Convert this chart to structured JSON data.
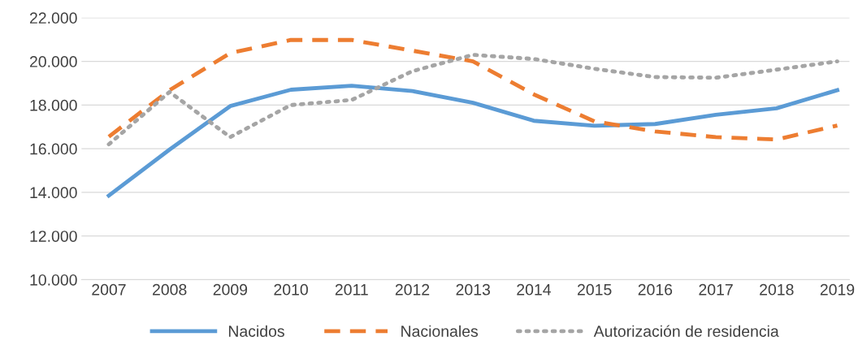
{
  "chart_data": {
    "type": "line",
    "categories": [
      "2007",
      "2008",
      "2009",
      "2010",
      "2011",
      "2012",
      "2013",
      "2014",
      "2015",
      "2016",
      "2017",
      "2018",
      "2019"
    ],
    "series": [
      {
        "name": "Nacidos",
        "color": "#5b9bd5",
        "line_style": "solid",
        "values": [
          13850,
          15960,
          17950,
          18700,
          18880,
          18640,
          18100,
          17280,
          17050,
          17130,
          17550,
          17850,
          18680
        ]
      },
      {
        "name": "Nacionales",
        "color": "#ed7d31",
        "line_style": "dashed",
        "values": [
          16550,
          18680,
          20380,
          20980,
          20980,
          20490,
          20000,
          18490,
          17250,
          16790,
          16530,
          16420,
          17060
        ]
      },
      {
        "name": "Autorización de residencia",
        "color": "#a5a5a5",
        "line_style": "dotted",
        "values": [
          16200,
          18600,
          16530,
          18000,
          18230,
          19550,
          20300,
          20110,
          19660,
          19280,
          19250,
          19620,
          20000
        ]
      }
    ],
    "ylim": [
      10000,
      22000
    ],
    "yticks": [
      {
        "value": 10000,
        "label": "10.000"
      },
      {
        "value": 12000,
        "label": "12.000"
      },
      {
        "value": 14000,
        "label": "14.000"
      },
      {
        "value": 16000,
        "label": "16.000"
      },
      {
        "value": 18000,
        "label": "18.000"
      },
      {
        "value": 20000,
        "label": "20.000"
      },
      {
        "value": 22000,
        "label": "22.000"
      }
    ],
    "grid": "y",
    "legend": "bottom",
    "marker": "none"
  }
}
